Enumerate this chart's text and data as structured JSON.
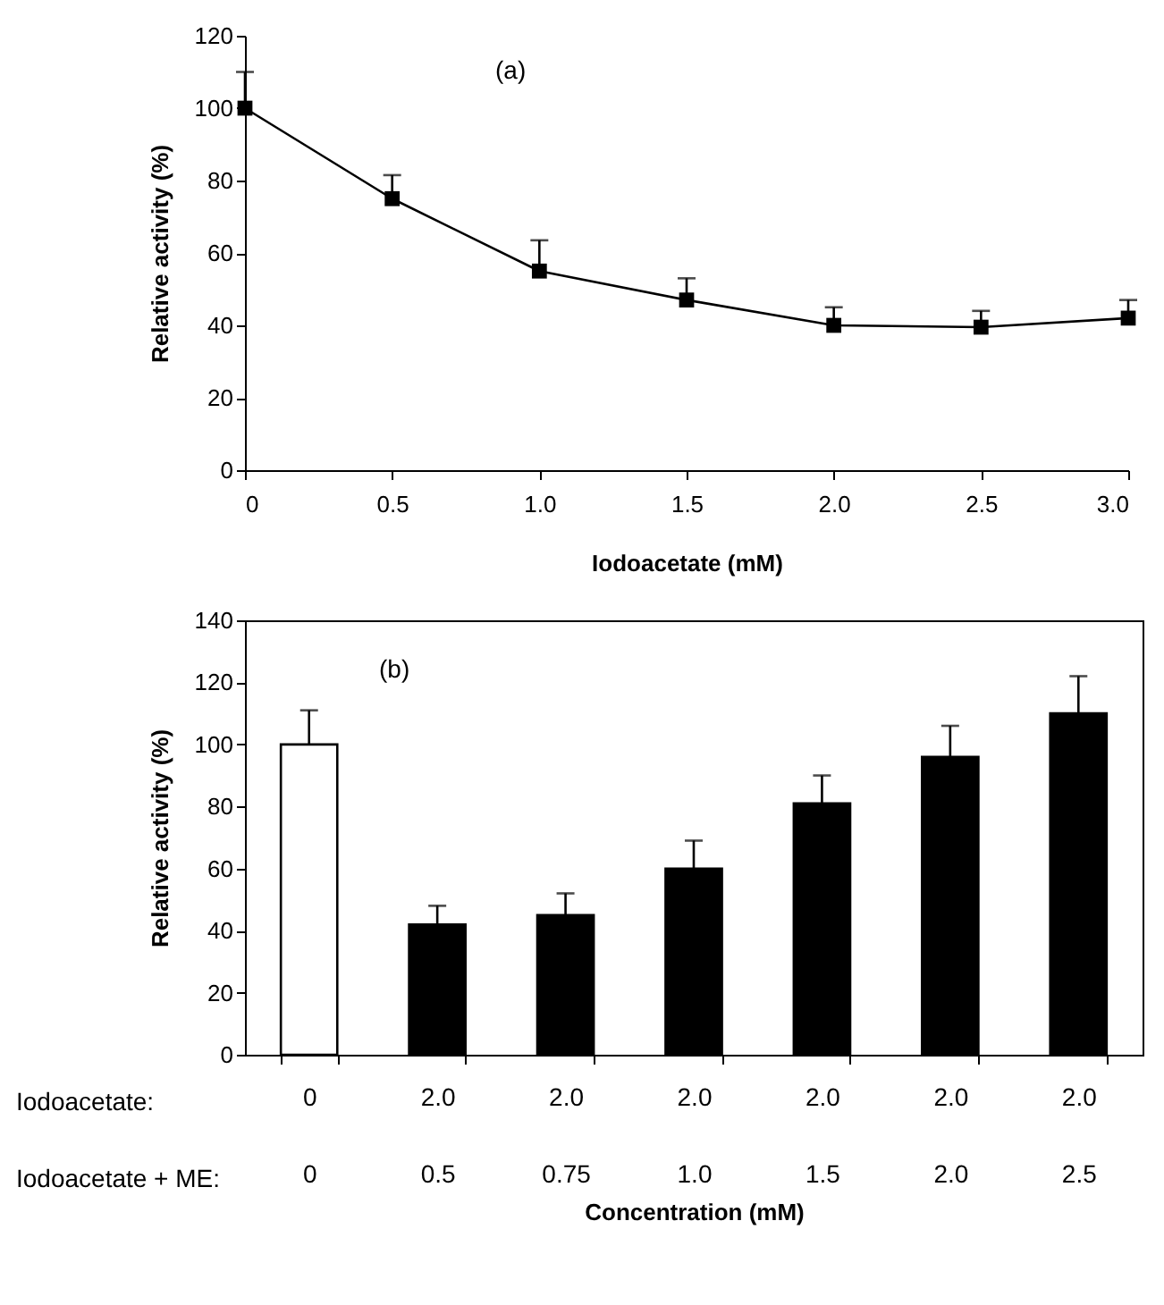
{
  "chart_data": [
    {
      "type": "line",
      "xlabel": "Iodoacetate (mM)",
      "ylabel": "Relative activity (%)",
      "annotations": [
        "(a)"
      ],
      "x": [
        0,
        0.5,
        1,
        1.5,
        2,
        2.5,
        3
      ],
      "series": [
        {
          "color": "#000000",
          "values": [
            100,
            75,
            55,
            47,
            40,
            39.5,
            42
          ],
          "errors": [
            [
              100,
              110
            ],
            [
              75,
              81.5
            ],
            [
              55,
              63.5
            ],
            [
              47,
              53
            ],
            [
              40,
              45
            ],
            [
              39.5,
              44
            ],
            [
              42,
              47
            ]
          ]
        }
      ],
      "xlim": [
        0,
        3
      ],
      "xticks": [
        0,
        0.5,
        {
          "value": 1,
          "label": "1.0"
        },
        1.5,
        {
          "value": 2,
          "label": "2.0"
        },
        2.5,
        {
          "value": 3,
          "label": "3.0"
        }
      ],
      "ylim": [
        0,
        120
      ],
      "yticks": [
        0,
        20,
        40,
        60,
        80,
        100,
        120
      ],
      "marker": "square"
    },
    {
      "type": "bar",
      "xlabel": "Concentration (mM)",
      "ylabel": "Relative activity (%)",
      "annotations": [
        "(b)",
        "Iodoacetate:",
        "Iodoacetate + ME:"
      ],
      "categories": [
        "0\n0",
        "2.0\n0.5",
        "2.0\n0.75",
        "2.0\n1.0",
        "2.0\n1.5",
        "2.0\n2.0",
        "2.0\n2.5"
      ],
      "series": [
        {
          "colors": [
            "#ffffff",
            "#000000",
            "#000000",
            "#000000",
            "#000000",
            "#000000",
            "#000000"
          ],
          "values": [
            100,
            42,
            45,
            60,
            81,
            96,
            110
          ],
          "errors": [
            [
              100,
              111
            ],
            [
              42,
              48
            ],
            [
              45,
              52
            ],
            [
              60,
              69
            ],
            [
              81,
              90
            ],
            [
              96,
              106
            ],
            [
              110,
              122
            ]
          ]
        }
      ],
      "ylim": [
        0,
        140
      ],
      "yticks": [
        0,
        20,
        40,
        60,
        80,
        100,
        120,
        140
      ]
    }
  ]
}
